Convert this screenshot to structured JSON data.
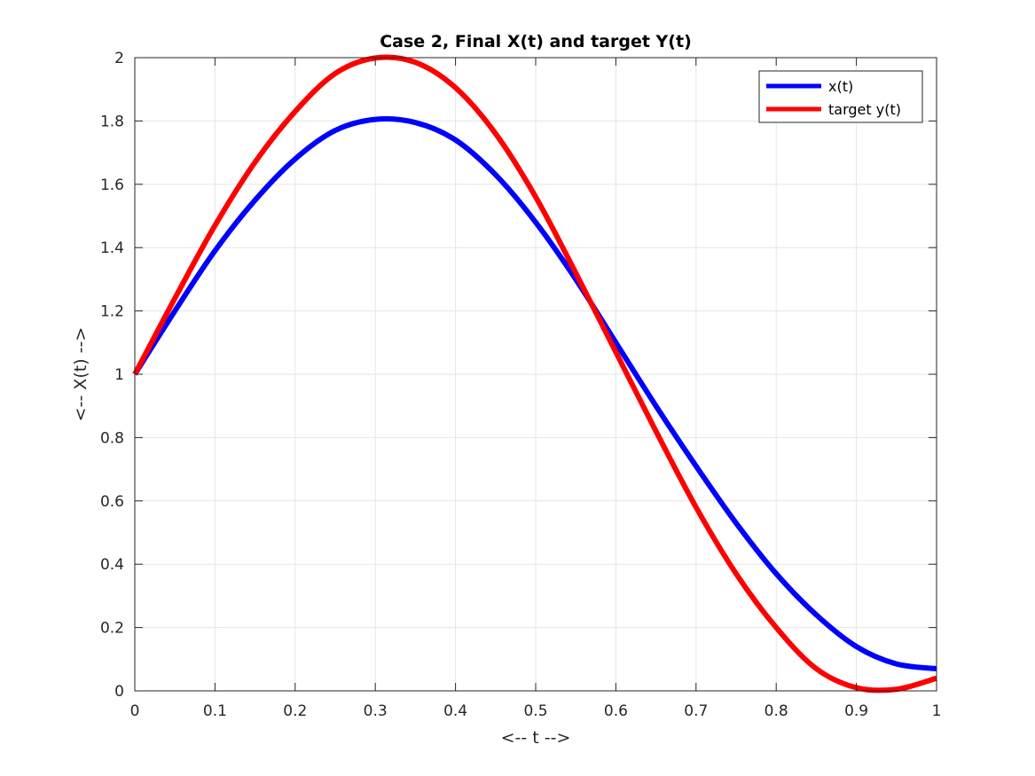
{
  "chart_data": {
    "type": "line",
    "title": "Case 2, Final X(t) and target Y(t)",
    "xlabel": "<-- t -->",
    "ylabel": "<-- X(t) -->",
    "xlim": [
      0,
      1
    ],
    "ylim": [
      0,
      2
    ],
    "xticks": [
      "0",
      "0.1",
      "0.2",
      "0.3",
      "0.4",
      "0.5",
      "0.6",
      "0.7",
      "0.8",
      "0.9",
      "1"
    ],
    "yticks": [
      "0",
      "0.2",
      "0.4",
      "0.6",
      "0.8",
      "1",
      "1.2",
      "1.4",
      "1.6",
      "1.8",
      "2"
    ],
    "grid": true,
    "legend_position": "top-right",
    "x": [
      0,
      0.05,
      0.1,
      0.15,
      0.2,
      0.25,
      0.3,
      0.35,
      0.4,
      0.45,
      0.5,
      0.55,
      0.6,
      0.65,
      0.7,
      0.75,
      0.8,
      0.85,
      0.9,
      0.95,
      1.0
    ],
    "series": [
      {
        "name": "x(t)",
        "color": "#0000ff",
        "values": [
          1.0,
          1.2,
          1.39,
          1.55,
          1.68,
          1.77,
          1.805,
          1.795,
          1.74,
          1.63,
          1.48,
          1.3,
          1.1,
          0.9,
          0.71,
          0.53,
          0.37,
          0.24,
          0.14,
          0.085,
          0.07
        ]
      },
      {
        "name": "target y(t)",
        "color": "#ff0000",
        "values": [
          1.0,
          1.24,
          1.47,
          1.67,
          1.83,
          1.95,
          1.999,
          1.985,
          1.905,
          1.76,
          1.56,
          1.32,
          1.07,
          0.82,
          0.58,
          0.37,
          0.2,
          0.07,
          0.01,
          0.005,
          0.04
        ]
      }
    ]
  }
}
